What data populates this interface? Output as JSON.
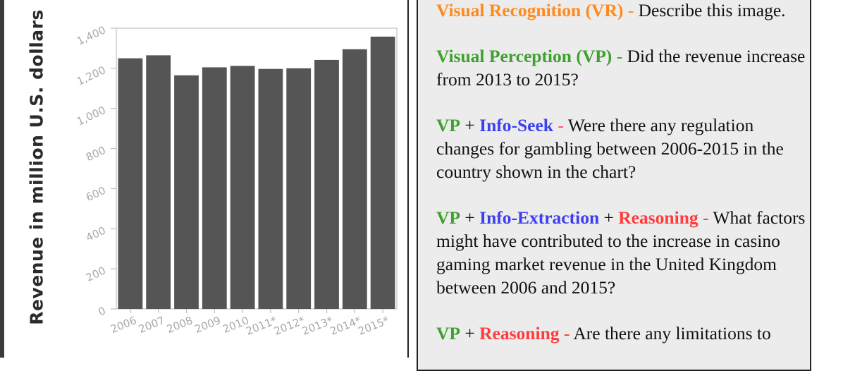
{
  "chart_data": {
    "type": "bar",
    "ylabel": "Revenue in million U.S. dollars",
    "xlabel": "",
    "categories": [
      "2006",
      "2007",
      "2008",
      "2009",
      "2010",
      "2011*",
      "2012*",
      "2013*",
      "2014*",
      "2015*"
    ],
    "values": [
      1250,
      1265,
      1165,
      1205,
      1212,
      1197,
      1200,
      1242,
      1295,
      1358
    ],
    "yticks": [
      "0",
      "200",
      "400",
      "600",
      "800",
      "1,000",
      "1,200",
      "1,400"
    ],
    "ylim": [
      0,
      1400
    ],
    "grid": false,
    "bar_color": "#555555"
  },
  "questions": [
    {
      "parts": [
        {
          "text": "Visual Recognition (VR)",
          "style": "tag-orange"
        },
        {
          "text": " - ",
          "style": "sep-orange"
        },
        {
          "text": "Describe this image.",
          "style": ""
        }
      ]
    },
    {
      "parts": [
        {
          "text": "Visual Perception (VP)",
          "style": "tag-green"
        },
        {
          "text": " - ",
          "style": "sep-green"
        },
        {
          "text": "Did the revenue increase from 2013 to 2015?",
          "style": ""
        }
      ]
    },
    {
      "parts": [
        {
          "text": "VP",
          "style": "tag-green"
        },
        {
          "text": " + ",
          "style": "plus"
        },
        {
          "text": "Info-Seek",
          "style": "tag-blue"
        },
        {
          "text": " - ",
          "style": "sep-pink"
        },
        {
          "text": "Were there any regulation changes for gambling  between 2006-2015 in the country shown in the chart?",
          "style": ""
        }
      ]
    },
    {
      "parts": [
        {
          "text": "VP",
          "style": "tag-green"
        },
        {
          "text": " + ",
          "style": "plus"
        },
        {
          "text": "Info-Extraction",
          "style": "tag-blue"
        },
        {
          "text": " + ",
          "style": "plus"
        },
        {
          "text": "Reasoning",
          "style": "tag-red"
        },
        {
          "text": " - ",
          "style": "sep-red"
        },
        {
          "text": "What factors might have contributed to  the increase in casino gaming market revenue in the United Kingdom between 2006 and 2015?",
          "style": ""
        }
      ]
    },
    {
      "parts": [
        {
          "text": "VP",
          "style": "tag-green"
        },
        {
          "text": " + ",
          "style": "plus"
        },
        {
          "text": "Reasoning",
          "style": "tag-red"
        },
        {
          "text": " - ",
          "style": "sep-red"
        },
        {
          "text": "Are there any limitations to",
          "style": ""
        }
      ]
    }
  ]
}
